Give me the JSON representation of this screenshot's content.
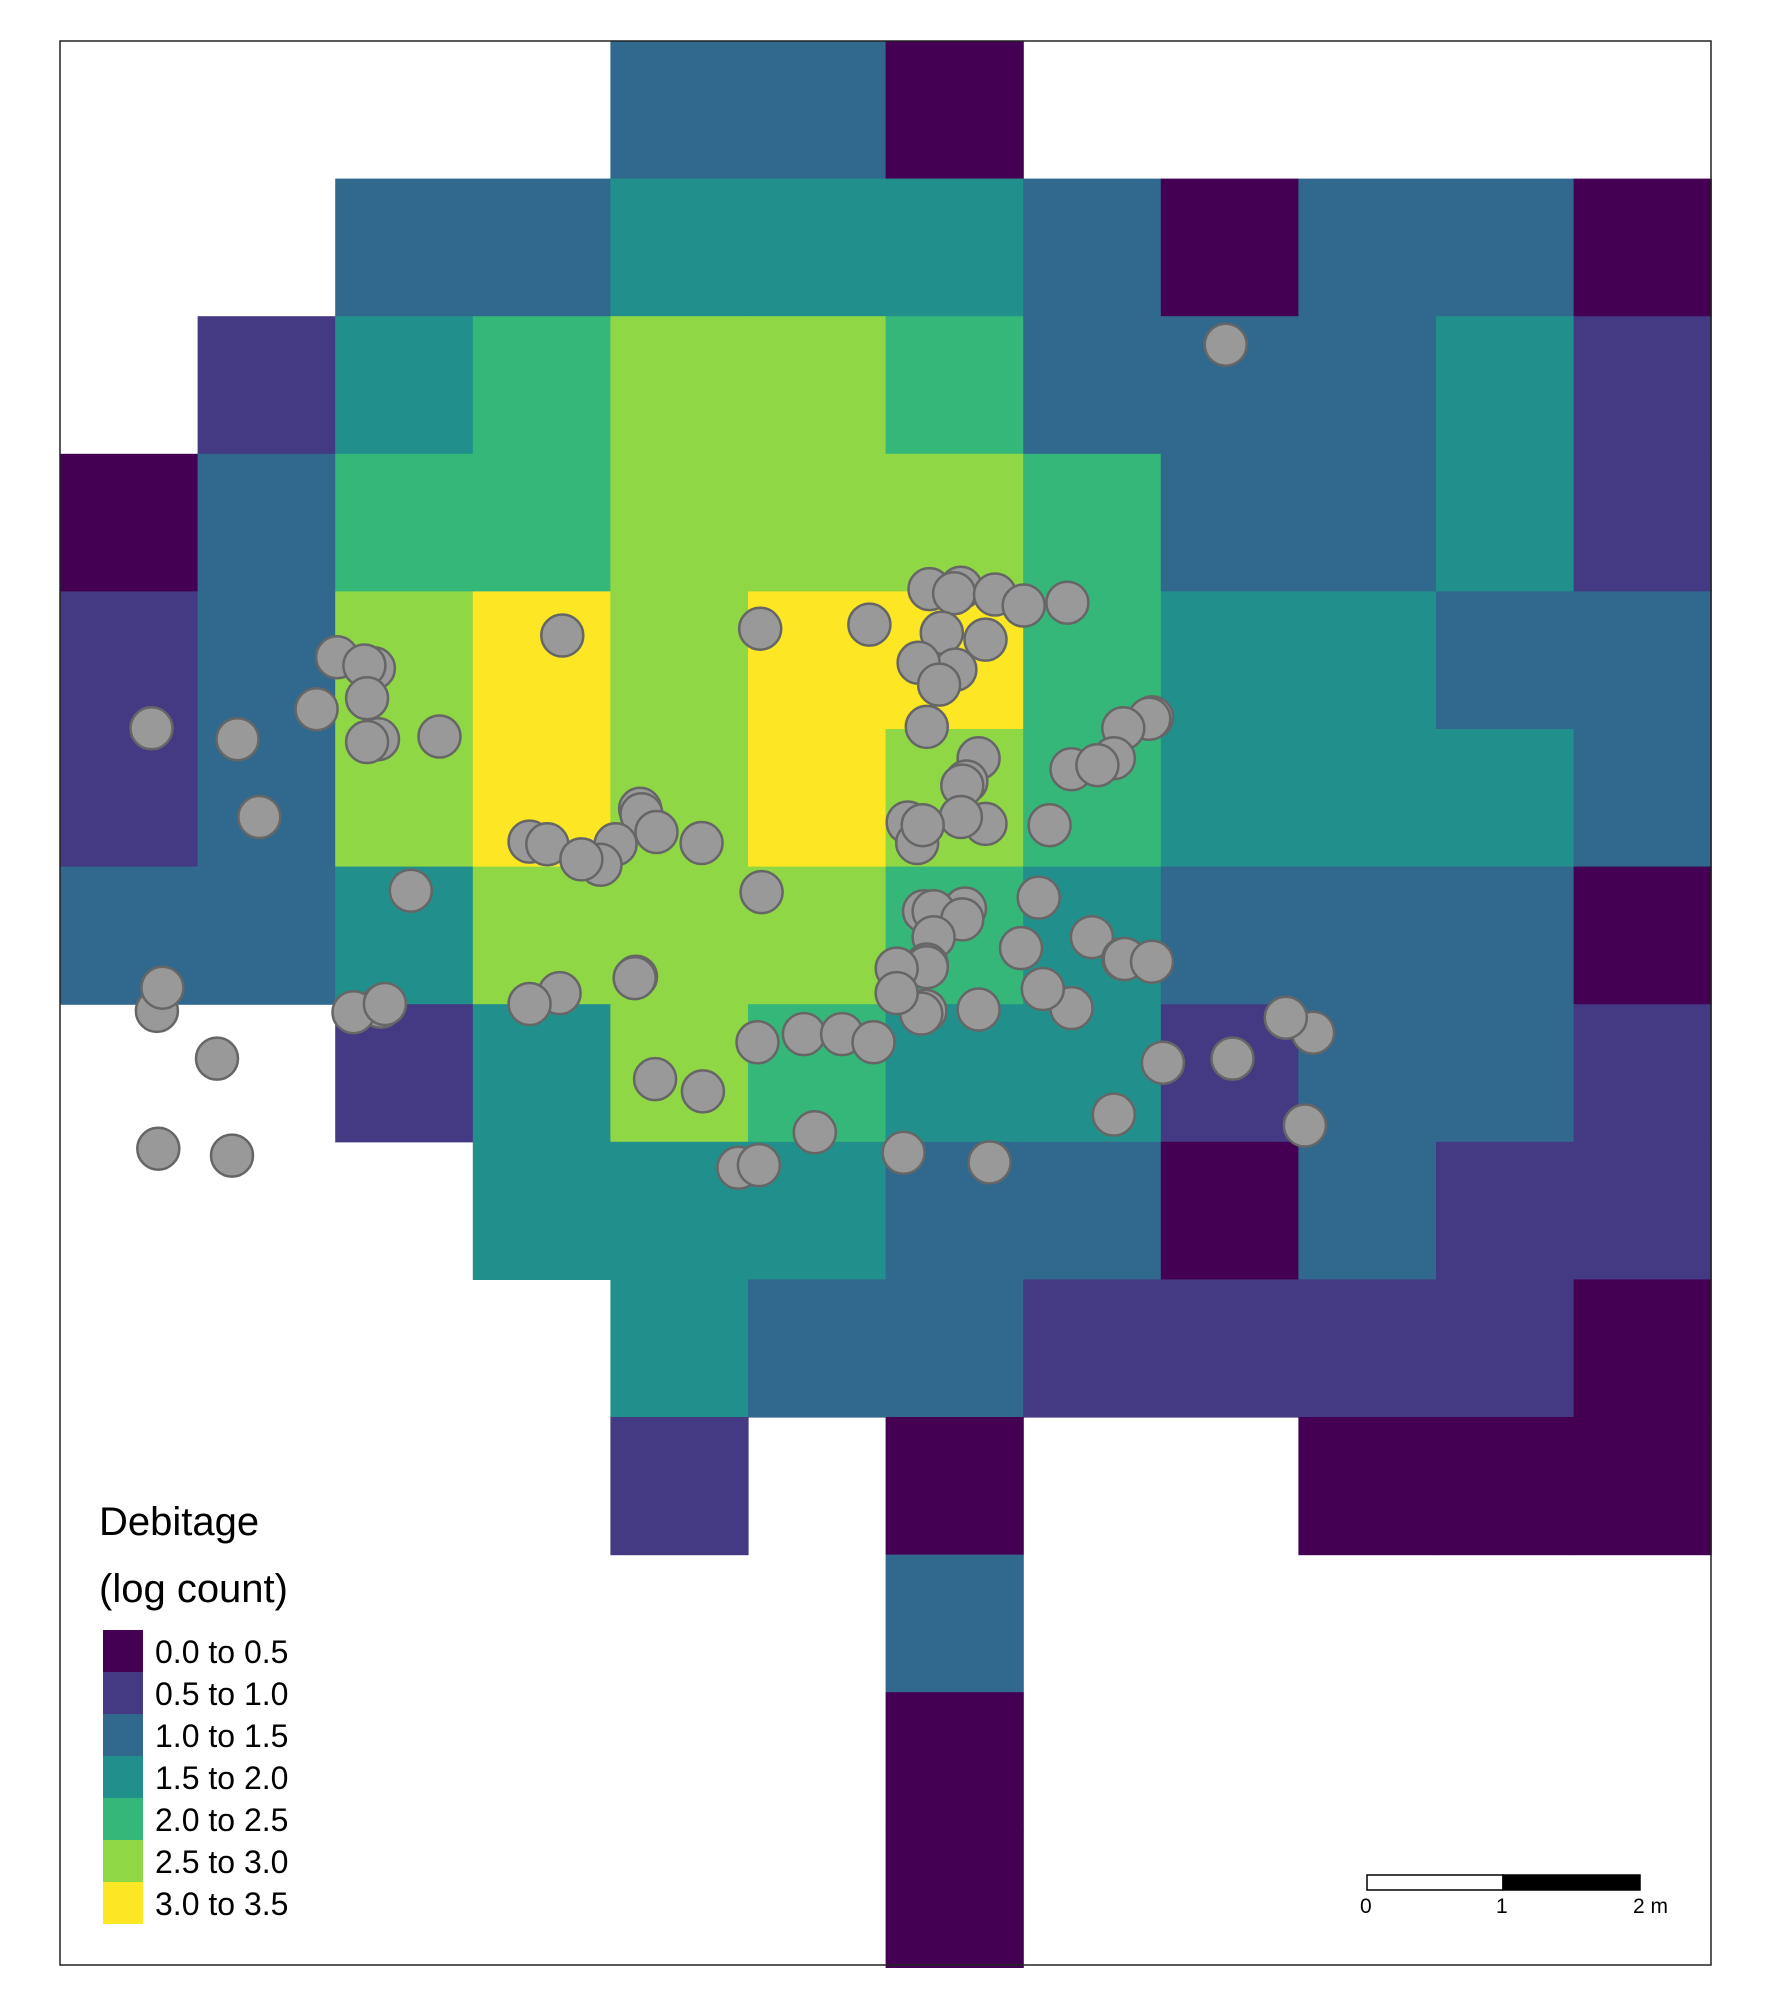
{
  "map": {
    "legend": {
      "title_line1": "Debitage",
      "title_line2": "(log count)",
      "classes": [
        {
          "label": "0.0 to 0.5",
          "color": "#440154"
        },
        {
          "label": "0.5 to 1.0",
          "color": "#443A83"
        },
        {
          "label": "1.0 to 1.5",
          "color": "#31688E"
        },
        {
          "label": "1.5 to 2.0",
          "color": "#21908C"
        },
        {
          "label": "2.0 to 2.5",
          "color": "#35B779"
        },
        {
          "label": "2.5 to 3.0",
          "color": "#8FD744"
        },
        {
          "label": "3.0 to 3.5",
          "color": "#FDE725"
        }
      ]
    },
    "scalebar": {
      "ticks": [
        "0",
        "1",
        "2 m"
      ]
    },
    "point_color": "#999999",
    "point_stroke": "#666666",
    "grid": [
      [
        -1,
        -1,
        -1,
        -1,
        2,
        2,
        0,
        -1,
        -1,
        -1,
        -1,
        -1
      ],
      [
        -1,
        -1,
        2,
        2,
        3,
        3,
        3,
        2,
        0,
        2,
        2,
        0
      ],
      [
        -1,
        1,
        3,
        4,
        5,
        5,
        4,
        2,
        2,
        2,
        3,
        1
      ],
      [
        0,
        2,
        4,
        4,
        5,
        5,
        5,
        4,
        2,
        2,
        3,
        1
      ],
      [
        1,
        2,
        5,
        6,
        5,
        6,
        6,
        4,
        3,
        3,
        2,
        2
      ],
      [
        1,
        2,
        5,
        6,
        5,
        6,
        5,
        4,
        3,
        3,
        3,
        2
      ],
      [
        2,
        2,
        3,
        5,
        5,
        5,
        4,
        3,
        2,
        2,
        2,
        0
      ],
      [
        -1,
        -1,
        1,
        3,
        5,
        4,
        3,
        3,
        1,
        2,
        2,
        1
      ],
      [
        -1,
        -1,
        -1,
        3,
        3,
        3,
        2,
        2,
        0,
        2,
        1,
        1
      ],
      [
        -1,
        -1,
        -1,
        -1,
        3,
        2,
        2,
        1,
        1,
        1,
        1,
        0
      ],
      [
        -1,
        -1,
        -1,
        -1,
        1,
        -1,
        0,
        -1,
        -1,
        0,
        0,
        0
      ],
      [
        -1,
        -1,
        -1,
        -1,
        -1,
        -1,
        2,
        -1,
        -1,
        -1,
        -1,
        -1
      ],
      [
        -1,
        -1,
        -1,
        -1,
        -1,
        -1,
        0,
        -1,
        -1,
        -1,
        -1,
        -1
      ],
      [
        -1,
        -1,
        -1,
        -1,
        -1,
        -1,
        0,
        -1,
        -1,
        -1,
        -1,
        -1
      ]
    ],
    "points": [
      [
        8.54,
        11.87
      ],
      [
        6.37,
        10.08
      ],
      [
        6.6,
        10.09
      ],
      [
        6.55,
        10.05
      ],
      [
        6.85,
        10.04
      ],
      [
        7.06,
        9.96
      ],
      [
        7.38,
        9.98
      ],
      [
        5.93,
        9.82
      ],
      [
        6.46,
        9.76
      ],
      [
        5.13,
        9.79
      ],
      [
        6.56,
        9.49
      ],
      [
        2.03,
        9.58
      ],
      [
        2.3,
        9.5
      ],
      [
        2.23,
        9.52
      ],
      [
        3.68,
        9.74
      ],
      [
        6.78,
        9.71
      ],
      [
        6.29,
        9.54
      ],
      [
        6.44,
        9.38
      ],
      [
        8.0,
        9.14
      ],
      [
        7.98,
        9.13
      ],
      [
        7.79,
        9.06
      ],
      [
        6.35,
        9.07
      ],
      [
        2.25,
        9.28
      ],
      [
        1.88,
        9.2
      ],
      [
        0.67,
        9.06
      ],
      [
        1.3,
        8.98
      ],
      [
        2.33,
        8.98
      ],
      [
        1.46,
        8.41
      ],
      [
        2.25,
        8.96
      ],
      [
        2.78,
        9.0
      ],
      [
        6.73,
        8.84
      ],
      [
        7.72,
        8.84
      ],
      [
        6.64,
        8.67
      ],
      [
        6.61,
        8.64
      ],
      [
        7.41,
        8.76
      ],
      [
        7.6,
        8.79
      ],
      [
        7.25,
        8.35
      ],
      [
        6.78,
        8.36
      ],
      [
        6.6,
        8.41
      ],
      [
        6.21,
        8.37
      ],
      [
        4.25,
        8.47
      ],
      [
        4.26,
        8.43
      ],
      [
        4.7,
        8.22
      ],
      [
        3.44,
        8.23
      ],
      [
        3.57,
        8.21
      ],
      [
        4.07,
        8.21
      ],
      [
        3.96,
        8.06
      ],
      [
        2.57,
        7.87
      ],
      [
        5.14,
        7.86
      ],
      [
        3.82,
        8.1
      ],
      [
        6.63,
        7.74
      ],
      [
        6.33,
        7.72
      ],
      [
        6.4,
        7.72
      ],
      [
        6.61,
        7.66
      ],
      [
        7.17,
        7.82
      ],
      [
        6.4,
        7.53
      ],
      [
        7.56,
        7.53
      ],
      [
        7.04,
        7.45
      ],
      [
        7.79,
        7.37
      ],
      [
        7.8,
        7.37
      ],
      [
        8.0,
        7.35
      ],
      [
        6.35,
        7.33
      ],
      [
        6.35,
        7.31
      ],
      [
        6.13,
        7.3
      ],
      [
        6.34,
        6.99
      ],
      [
        6.31,
        6.97
      ],
      [
        7.41,
        7.01
      ],
      [
        5.45,
        6.82
      ],
      [
        5.73,
        6.82
      ],
      [
        4.22,
        7.24
      ],
      [
        4.21,
        7.23
      ],
      [
        3.66,
        7.12
      ],
      [
        3.44,
        7.04
      ],
      [
        2.35,
        7.02
      ],
      [
        2.15,
        6.98
      ],
      [
        2.38,
        7.04
      ],
      [
        7.72,
        6.23
      ],
      [
        5.96,
        6.76
      ],
      [
        9.18,
        6.83
      ],
      [
        8.08,
        6.61
      ],
      [
        8.59,
        6.64
      ],
      [
        8.98,
        6.94
      ],
      [
        0.71,
        6.99
      ],
      [
        4.97,
        5.84
      ],
      [
        5.12,
        5.86
      ],
      [
        1.26,
        5.93
      ],
      [
        9.12,
        6.15
      ],
      [
        5.53,
        6.1
      ],
      [
        6.81,
        5.88
      ],
      [
        0.75,
        7.16
      ],
      [
        4.36,
        6.49
      ],
      [
        4.71,
        6.4
      ],
      [
        1.15,
        6.64
      ],
      [
        6.73,
        7.0
      ],
      [
        7.2,
        7.15
      ],
      [
        6.13,
        7.12
      ],
      [
        4.37,
        8.3
      ],
      [
        6.28,
        8.22
      ],
      [
        6.32,
        8.35
      ],
      [
        5.11,
        6.76
      ],
      [
        0.72,
        5.98
      ],
      [
        6.18,
        5.95
      ]
    ]
  }
}
